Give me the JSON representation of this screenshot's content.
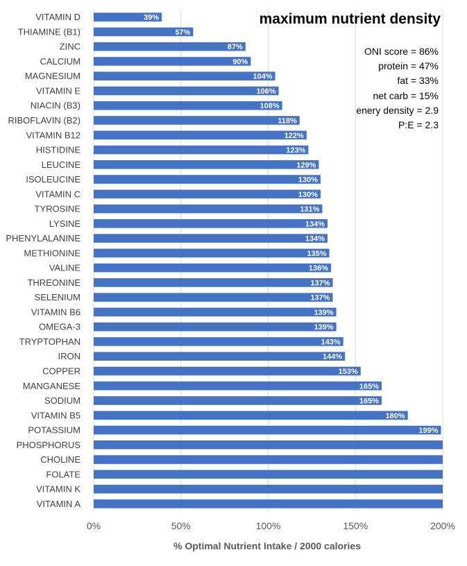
{
  "chart_data": {
    "type": "bar",
    "orientation": "horizontal",
    "title": "maximum nutrient density",
    "xlabel": "% Optimal Nutrient Intake / 2000 calories",
    "ylabel": "",
    "xlim": [
      0,
      200
    ],
    "xticks": [
      0,
      50,
      100,
      150,
      200
    ],
    "xtick_labels": [
      "0%",
      "50%",
      "100%",
      "150%",
      "200%"
    ],
    "grid": true,
    "bar_color": "#4472c4",
    "categories": [
      "VITAMIN D",
      "THIAMINE (B1)",
      "ZINC",
      "CALCIUM",
      "MAGNESIUM",
      "VITAMIN E",
      "NIACIN (B3)",
      "RIBOFLAVIN (B2)",
      "VITAMIN B12",
      "HISTIDINE",
      "LEUCINE",
      "ISOLEUCINE",
      "VITAMIN C",
      "TYROSINE",
      "LYSINE",
      "PHENYLALANINE",
      "METHIONINE",
      "VALINE",
      "THREONINE",
      "SELENIUM",
      "VITAMIN B6",
      "OMEGA-3",
      "TRYPTOPHAN",
      "IRON",
      "COPPER",
      "MANGANESE",
      "SODIUM",
      "VITAMIN B5",
      "POTASSIUM",
      "PHOSPHORUS",
      "CHOLINE",
      "FOLATE",
      "VITAMIN K",
      "VITAMIN A"
    ],
    "values": [
      39,
      57,
      87,
      90,
      104,
      106,
      108,
      118,
      122,
      123,
      129,
      130,
      130,
      131,
      134,
      134,
      135,
      136,
      137,
      137,
      139,
      139,
      143,
      144,
      153,
      165,
      165,
      180,
      199,
      200,
      200,
      200,
      200,
      200
    ],
    "data_labels": [
      "39%",
      "57%",
      "87%",
      "90%",
      "104%",
      "106%",
      "108%",
      "118%",
      "122%",
      "123%",
      "129%",
      "130%",
      "130%",
      "131%",
      "134%",
      "134%",
      "135%",
      "136%",
      "137%",
      "137%",
      "139%",
      "139%",
      "143%",
      "144%",
      "153%",
      "165%",
      "165%",
      "180%",
      "199%",
      "",
      "",
      "",
      "",
      ""
    ],
    "annotations": [
      "ONI score = 86%",
      "protein = 47%",
      "fat = 33%",
      "net carb = 15%",
      "enery density = 2.9",
      "P:E = 2.3"
    ]
  }
}
